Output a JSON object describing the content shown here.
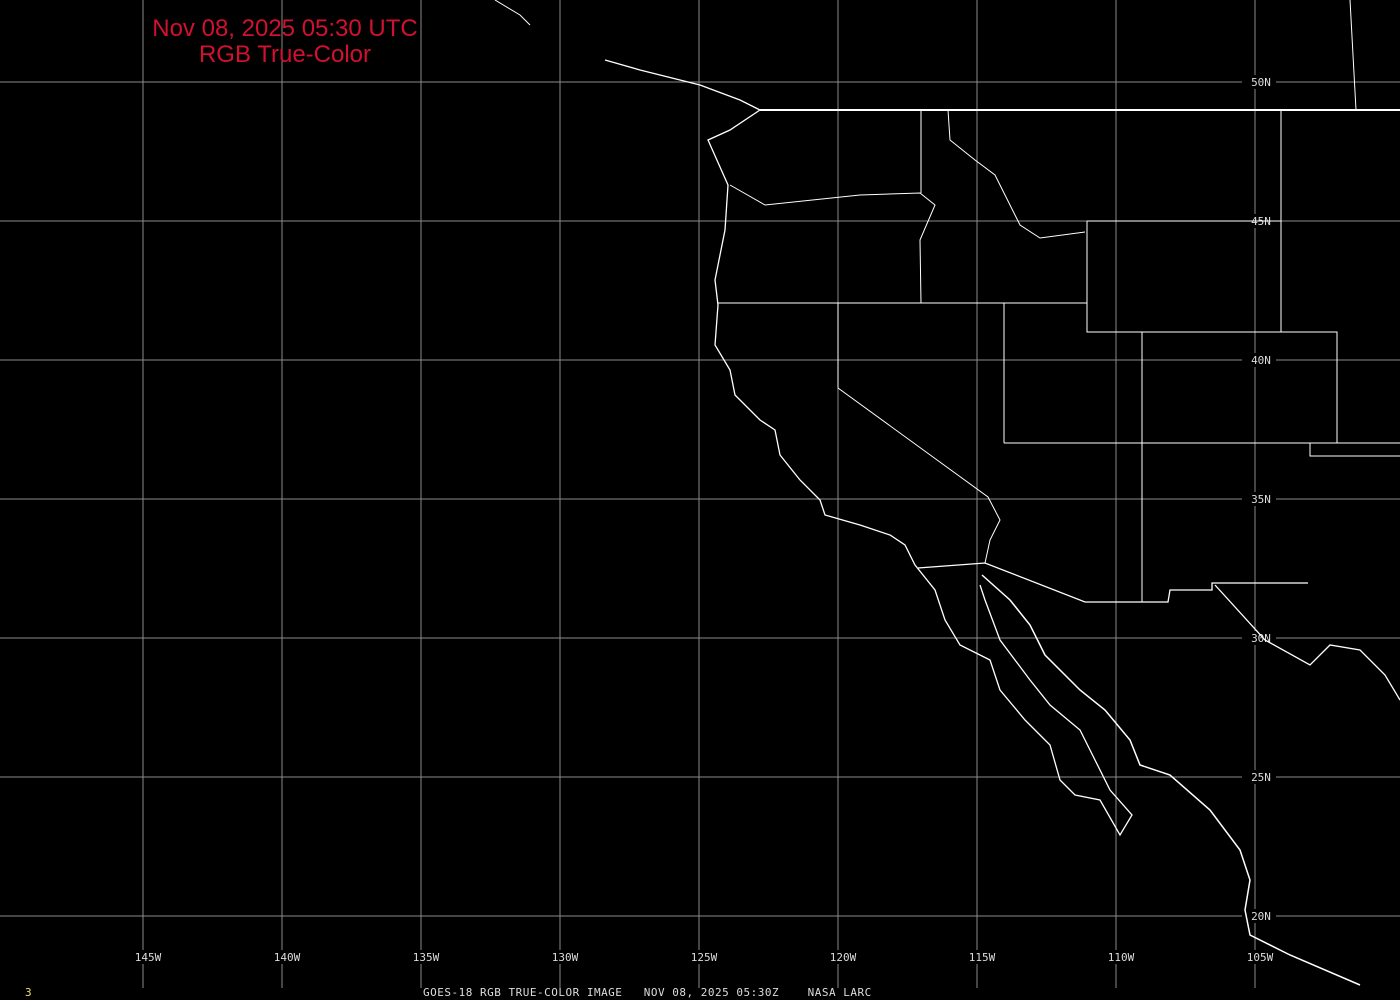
{
  "title": {
    "line1": "Nov 08, 2025 05:30 UTC",
    "line2": "RGB True-Color"
  },
  "footer": {
    "frame": "3",
    "caption": "GOES-18 RGB TRUE-COLOR IMAGE   NOV 08, 2025 05:30Z    NASA LARC"
  },
  "grid": {
    "longitudes": [
      "145W",
      "140W",
      "135W",
      "130W",
      "125W",
      "120W",
      "115W",
      "110W",
      "105W"
    ],
    "latitudes": [
      "50N",
      "45N",
      "40N",
      "35N",
      "30N",
      "25N",
      "20N"
    ]
  },
  "colors": {
    "title": "#d2102f",
    "grid": "#8a8a8a",
    "borders": "#ffffff",
    "frame": "#e8e070",
    "background": "#000000"
  }
}
